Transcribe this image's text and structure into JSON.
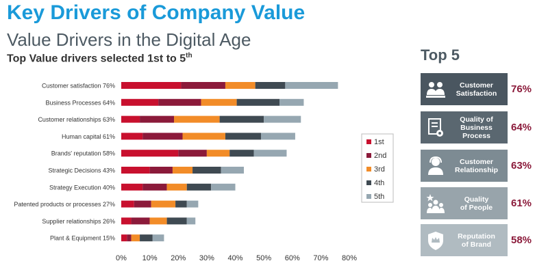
{
  "header": {
    "title": "Key Drivers of Company Value",
    "subtitle": "Value Drivers in the Digital Age",
    "chart_title": "Top Value drivers selected 1st to 5",
    "chart_title_sup": "th"
  },
  "top5": {
    "heading": "Top 5",
    "items": [
      {
        "label_1": "Customer",
        "label_2": "Satisfaction",
        "label_3": "",
        "pct": "76%",
        "icon": "people-meeting-icon",
        "color": "#4a5660"
      },
      {
        "label_1": "Quality of",
        "label_2": "Business",
        "label_3": "Process",
        "pct": "64%",
        "icon": "document-gear-icon",
        "color": "#5a6770"
      },
      {
        "label_1": "Customer",
        "label_2": "Relationship",
        "label_3": "",
        "pct": "63%",
        "icon": "customer-support-icon",
        "color": "#7d8b93"
      },
      {
        "label_1": "Quality",
        "label_2": "of People",
        "label_3": "",
        "pct": "61%",
        "icon": "people-star-icon",
        "color": "#98a4ab"
      },
      {
        "label_1": "Reputation",
        "label_2": "of Brand",
        "label_3": "",
        "pct": "58%",
        "icon": "crown-shield-icon",
        "color": "#b0bbc1"
      }
    ]
  },
  "chart_data": {
    "type": "bar",
    "orientation": "horizontal",
    "stacked": true,
    "categories": [
      "Customer satisfaction 76%",
      "Business Processes 64%",
      "Customer relationships 63%",
      "Human capital 61%",
      "Brands' reputation 58%",
      "Strategic Decisions 43%",
      "Strategy Execution 40%",
      "Patented products or processes 27%",
      "Supplier relationships 26%",
      "Plant & Equipment 15%"
    ],
    "series": [
      {
        "name": "1st",
        "color": "#c8102e",
        "values": [
          21,
          13,
          6.5,
          7.5,
          20,
          10,
          7.5,
          4.5,
          3.5,
          2
        ]
      },
      {
        "name": "2nd",
        "color": "#8b1a3a",
        "values": [
          15.5,
          15,
          12,
          14,
          10,
          8,
          8.5,
          6,
          6.5,
          1.5
        ]
      },
      {
        "name": "3rd",
        "color": "#f28c28",
        "values": [
          10.5,
          12.5,
          16,
          15,
          8,
          7,
          7,
          8.5,
          6,
          3
        ]
      },
      {
        "name": "4th",
        "color": "#3f4a52",
        "values": [
          10.5,
          15,
          15.5,
          12.5,
          8.5,
          10,
          8.5,
          4,
          7,
          4.5
        ]
      },
      {
        "name": "5th",
        "color": "#96a7b1",
        "values": [
          18.5,
          8.5,
          13,
          12,
          11.5,
          8,
          8.5,
          4,
          3,
          4
        ]
      }
    ],
    "xlim": [
      0,
      80
    ],
    "xticks": [
      "0%",
      "10%",
      "20%",
      "30%",
      "40%",
      "50%",
      "60%",
      "70%",
      "80%"
    ],
    "legend_position": "right",
    "grid": false
  }
}
